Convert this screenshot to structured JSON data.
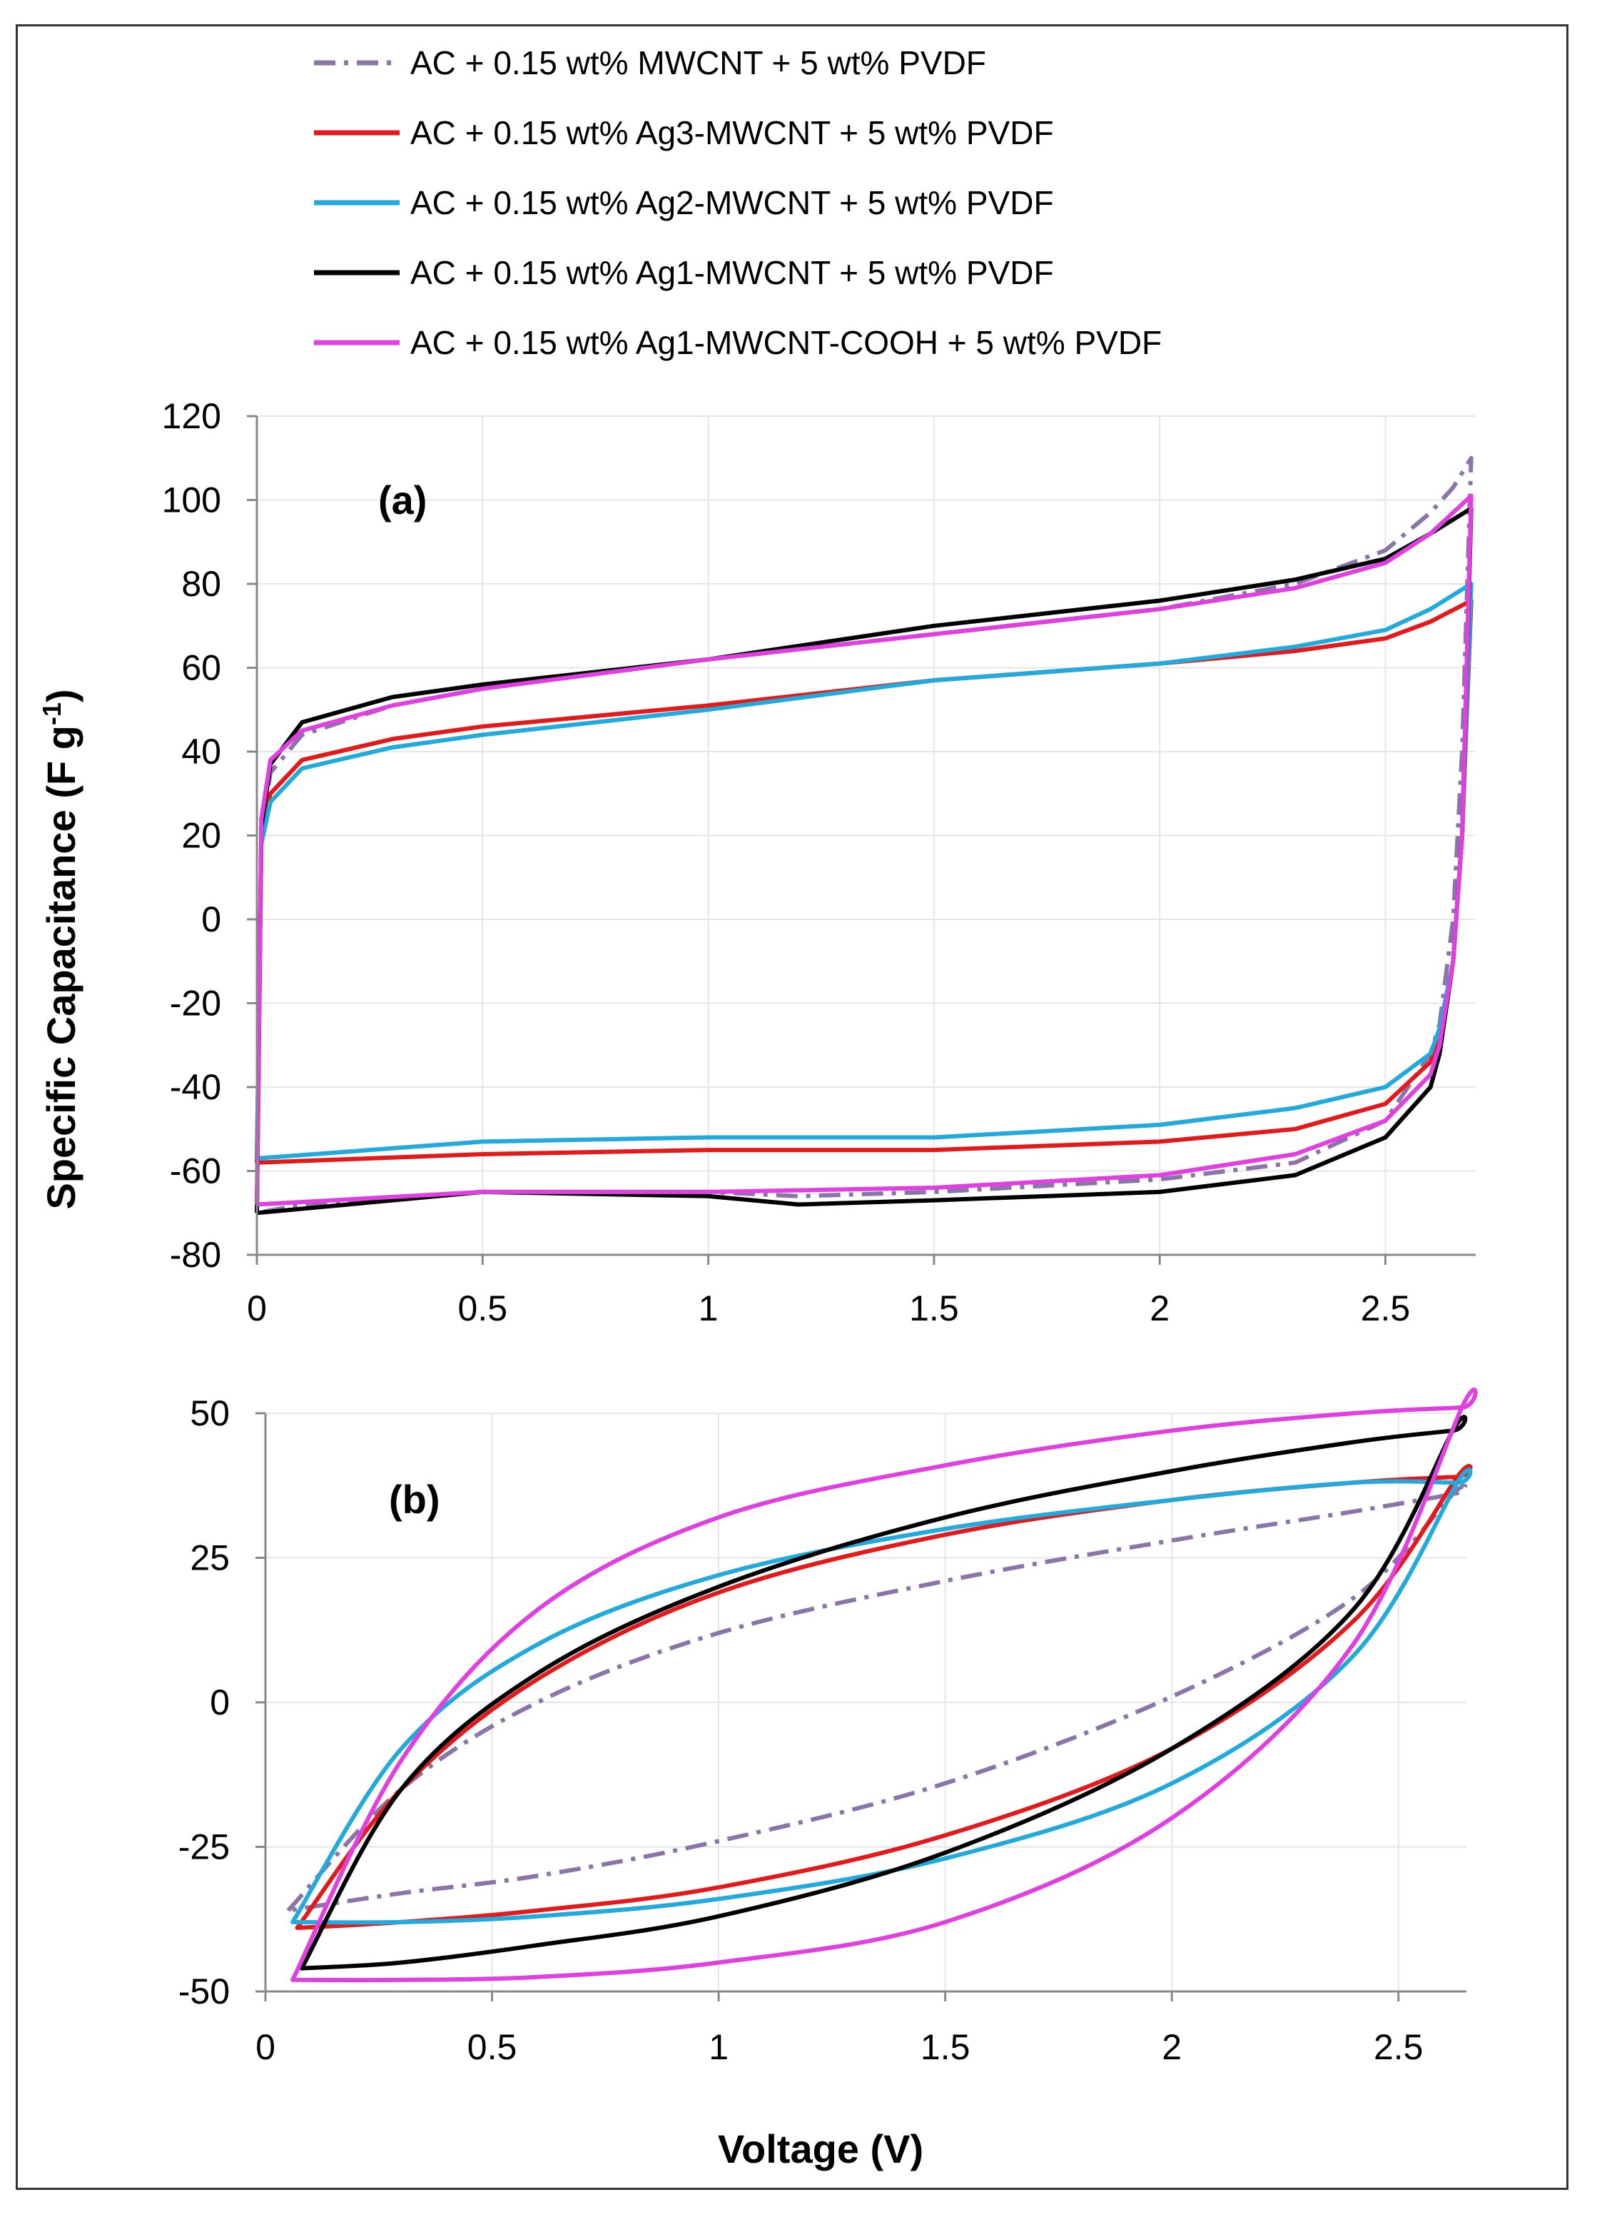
{
  "legend": {
    "entries": [
      "AC + 0.15 wt% MWCNT + 5 wt% PVDF",
      "AC + 0.15 wt% Ag3-MWCNT + 5 wt% PVDF",
      "AC + 0.15 wt% Ag2-MWCNT + 5 wt% PVDF",
      "AC + 0.15 wt% Ag1-MWCNT + 5 wt% PVDF",
      "AC + 0.15 wt% Ag1-MWCNT-COOH + 5 wt% PVDF"
    ],
    "colors": [
      "#8a74a8",
      "#e31a1c",
      "#22aadd",
      "#000000",
      "#e040e0"
    ],
    "placement": "top"
  },
  "ylabel": "Specific Capacitance (F g⁻¹)",
  "ylabel_main": "Specific Capacitance (F g",
  "ylabel_sup": "-1",
  "ylabel_close": ")",
  "xlabel": "Voltage (V)",
  "chart_data": [
    {
      "type": "line",
      "panel": "(a)",
      "xlim": [
        0,
        2.7
      ],
      "ylim": [
        -80,
        120
      ],
      "xticks": [
        "0",
        "0.5",
        "1",
        "1.5",
        "2",
        "2.5"
      ],
      "yticks": [
        "120",
        "100",
        "80",
        "60",
        "40",
        "20",
        "0",
        "-20",
        "-40",
        "-60",
        "-80"
      ],
      "grid": true,
      "series": [
        {
          "name": "AC + 0.15 wt% MWCNT + 5 wt% PVDF",
          "style": "dashdot",
          "upper": {
            "x": [
              0,
              0.01,
              0.03,
              0.1,
              0.3,
              0.5,
              1.0,
              1.5,
              2.0,
              2.3,
              2.5,
              2.6,
              2.65,
              2.69
            ],
            "y": [
              -70,
              20,
              35,
              44,
              51,
              55,
              62,
              68,
              74,
              80,
              88,
              97,
              103,
              110
            ]
          },
          "lower": {
            "x": [
              2.69,
              2.67,
              2.65,
              2.62,
              2.6,
              2.5,
              2.3,
              2.0,
              1.5,
              1.2,
              1.0,
              0.5,
              0.1,
              0.0
            ],
            "y": [
              110,
              40,
              0,
              -25,
              -32,
              -48,
              -58,
              -62,
              -65,
              -66,
              -65,
              -65,
              -68,
              -70
            ]
          }
        },
        {
          "name": "AC + 0.15 wt% Ag3-MWCNT + 5 wt% PVDF",
          "style": "solid",
          "upper": {
            "x": [
              0,
              0.01,
              0.03,
              0.1,
              0.3,
              0.5,
              1.0,
              1.5,
              2.0,
              2.3,
              2.5,
              2.6,
              2.69
            ],
            "y": [
              -58,
              20,
              30,
              38,
              43,
              46,
              51,
              57,
              61,
              64,
              67,
              71,
              76
            ]
          },
          "lower": {
            "x": [
              2.69,
              2.67,
              2.65,
              2.62,
              2.6,
              2.5,
              2.3,
              2.0,
              1.5,
              1.0,
              0.5,
              0.0
            ],
            "y": [
              76,
              20,
              -10,
              -28,
              -34,
              -44,
              -50,
              -53,
              -55,
              -55,
              -56,
              -58
            ]
          }
        },
        {
          "name": "AC + 0.15 wt% Ag2-MWCNT + 5 wt% PVDF",
          "style": "solid",
          "upper": {
            "x": [
              0,
              0.01,
              0.03,
              0.1,
              0.3,
              0.5,
              1.0,
              1.5,
              2.0,
              2.3,
              2.5,
              2.6,
              2.69
            ],
            "y": [
              -57,
              18,
              28,
              36,
              41,
              44,
              50,
              57,
              61,
              65,
              69,
              74,
              80
            ]
          },
          "lower": {
            "x": [
              2.69,
              2.67,
              2.65,
              2.62,
              2.6,
              2.5,
              2.3,
              2.0,
              1.5,
              1.0,
              0.5,
              0.0
            ],
            "y": [
              80,
              20,
              -10,
              -26,
              -32,
              -40,
              -45,
              -49,
              -52,
              -52,
              -53,
              -57
            ]
          }
        },
        {
          "name": "AC + 0.15 wt% Ag1-MWCNT + 5 wt% PVDF",
          "style": "solid",
          "upper": {
            "x": [
              0,
              0.01,
              0.03,
              0.1,
              0.3,
              0.5,
              1.0,
              1.5,
              2.0,
              2.3,
              2.5,
              2.6,
              2.69
            ],
            "y": [
              -70,
              22,
              37,
              47,
              53,
              56,
              62,
              70,
              76,
              81,
              86,
              92,
              98
            ]
          },
          "lower": {
            "x": [
              2.69,
              2.67,
              2.65,
              2.62,
              2.6,
              2.5,
              2.3,
              2.0,
              1.5,
              1.2,
              1.0,
              0.5,
              0.0
            ],
            "y": [
              98,
              20,
              -10,
              -32,
              -40,
              -52,
              -61,
              -65,
              -67,
              -68,
              -66,
              -65,
              -70
            ]
          }
        },
        {
          "name": "AC + 0.15 wt% Ag1-MWCNT-COOH + 5 wt% PVDF",
          "style": "solid",
          "upper": {
            "x": [
              0,
              0.01,
              0.03,
              0.1,
              0.3,
              0.5,
              1.0,
              1.5,
              2.0,
              2.3,
              2.5,
              2.6,
              2.69
            ],
            "y": [
              -68,
              24,
              38,
              45,
              51,
              55,
              62,
              68,
              74,
              79,
              85,
              92,
              101
            ]
          },
          "lower": {
            "x": [
              2.69,
              2.67,
              2.65,
              2.62,
              2.6,
              2.5,
              2.3,
              2.0,
              1.5,
              1.0,
              0.5,
              0.0
            ],
            "y": [
              101,
              20,
              -10,
              -30,
              -37,
              -48,
              -56,
              -61,
              -64,
              -65,
              -65,
              -68
            ]
          }
        }
      ]
    },
    {
      "type": "line",
      "panel": "(b)",
      "xlim": [
        0,
        2.7
      ],
      "ylim": [
        -50,
        50
      ],
      "xticks": [
        "0",
        "0.5",
        "1",
        "1.5",
        "2",
        "2.5"
      ],
      "yticks": [
        "50",
        "25",
        "0",
        "-25",
        "-50"
      ],
      "grid": true,
      "series": [
        {
          "name": "AC + 0.15 wt% MWCNT + 5 wt% PVDF",
          "style": "dashdot",
          "upper": {
            "x": [
              0.05,
              0.3,
              0.6,
              1.0,
              1.5,
              2.0,
              2.4,
              2.62
            ],
            "y": [
              -36,
              -15,
              0,
              12,
              21,
              28,
              33,
              36
            ]
          },
          "lower": {
            "x": [
              2.62,
              2.4,
              2.0,
              1.5,
              1.0,
              0.6,
              0.3,
              0.05
            ],
            "y": [
              36,
              18,
              1,
              -14,
              -24,
              -30,
              -33,
              -36
            ]
          }
        },
        {
          "name": "AC + 0.15 wt% Ag3-MWCNT + 5 wt% PVDF",
          "style": "solid",
          "upper": {
            "x": [
              0.07,
              0.3,
              0.6,
              1.0,
              1.5,
              2.0,
              2.4,
              2.63
            ],
            "y": [
              -39,
              -15,
              4,
              19,
              29,
              35,
              38,
              39
            ]
          },
          "lower": {
            "x": [
              2.63,
              2.4,
              2.0,
              1.5,
              1.0,
              0.6,
              0.3,
              0.07
            ],
            "y": [
              39,
              14,
              -8,
              -23,
              -32,
              -36,
              -38,
              -39
            ]
          }
        },
        {
          "name": "AC + 0.15 wt% Ag2-MWCNT + 5 wt% PVDF",
          "style": "solid",
          "upper": {
            "x": [
              0.06,
              0.3,
              0.6,
              1.0,
              1.5,
              2.0,
              2.4,
              2.63
            ],
            "y": [
              -38,
              -8,
              10,
              22,
              30,
              35,
              38,
              38
            ]
          },
          "lower": {
            "x": [
              2.63,
              2.4,
              2.0,
              1.5,
              1.0,
              0.6,
              0.3,
              0.06
            ],
            "y": [
              38,
              8,
              -14,
              -27,
              -34,
              -37,
              -38,
              -38
            ]
          }
        },
        {
          "name": "AC + 0.15 wt% Ag1-MWCNT + 5 wt% PVDF",
          "style": "solid",
          "upper": {
            "x": [
              0.08,
              0.3,
              0.6,
              1.0,
              1.5,
              2.0,
              2.4,
              2.62
            ],
            "y": [
              -46,
              -15,
              5,
              20,
              32,
              40,
              45,
              47
            ]
          },
          "lower": {
            "x": [
              2.62,
              2.4,
              2.0,
              1.5,
              1.0,
              0.6,
              0.3,
              0.08
            ],
            "y": [
              47,
              16,
              -8,
              -26,
              -37,
              -42,
              -45,
              -46
            ]
          }
        },
        {
          "name": "AC + 0.15 wt% Ag1-MWCNT-COOH + 5 wt% PVDF",
          "style": "solid",
          "upper": {
            "x": [
              0.06,
              0.3,
              0.6,
              1.0,
              1.5,
              2.0,
              2.4,
              2.64
            ],
            "y": [
              -48,
              -10,
              16,
              32,
              41,
              47,
              50,
              51
            ]
          },
          "lower": {
            "x": [
              2.64,
              2.4,
              2.0,
              1.5,
              1.0,
              0.6,
              0.3,
              0.06
            ],
            "y": [
              51,
              10,
              -20,
              -38,
              -45,
              -47.5,
              -48,
              -48
            ]
          }
        }
      ]
    }
  ]
}
